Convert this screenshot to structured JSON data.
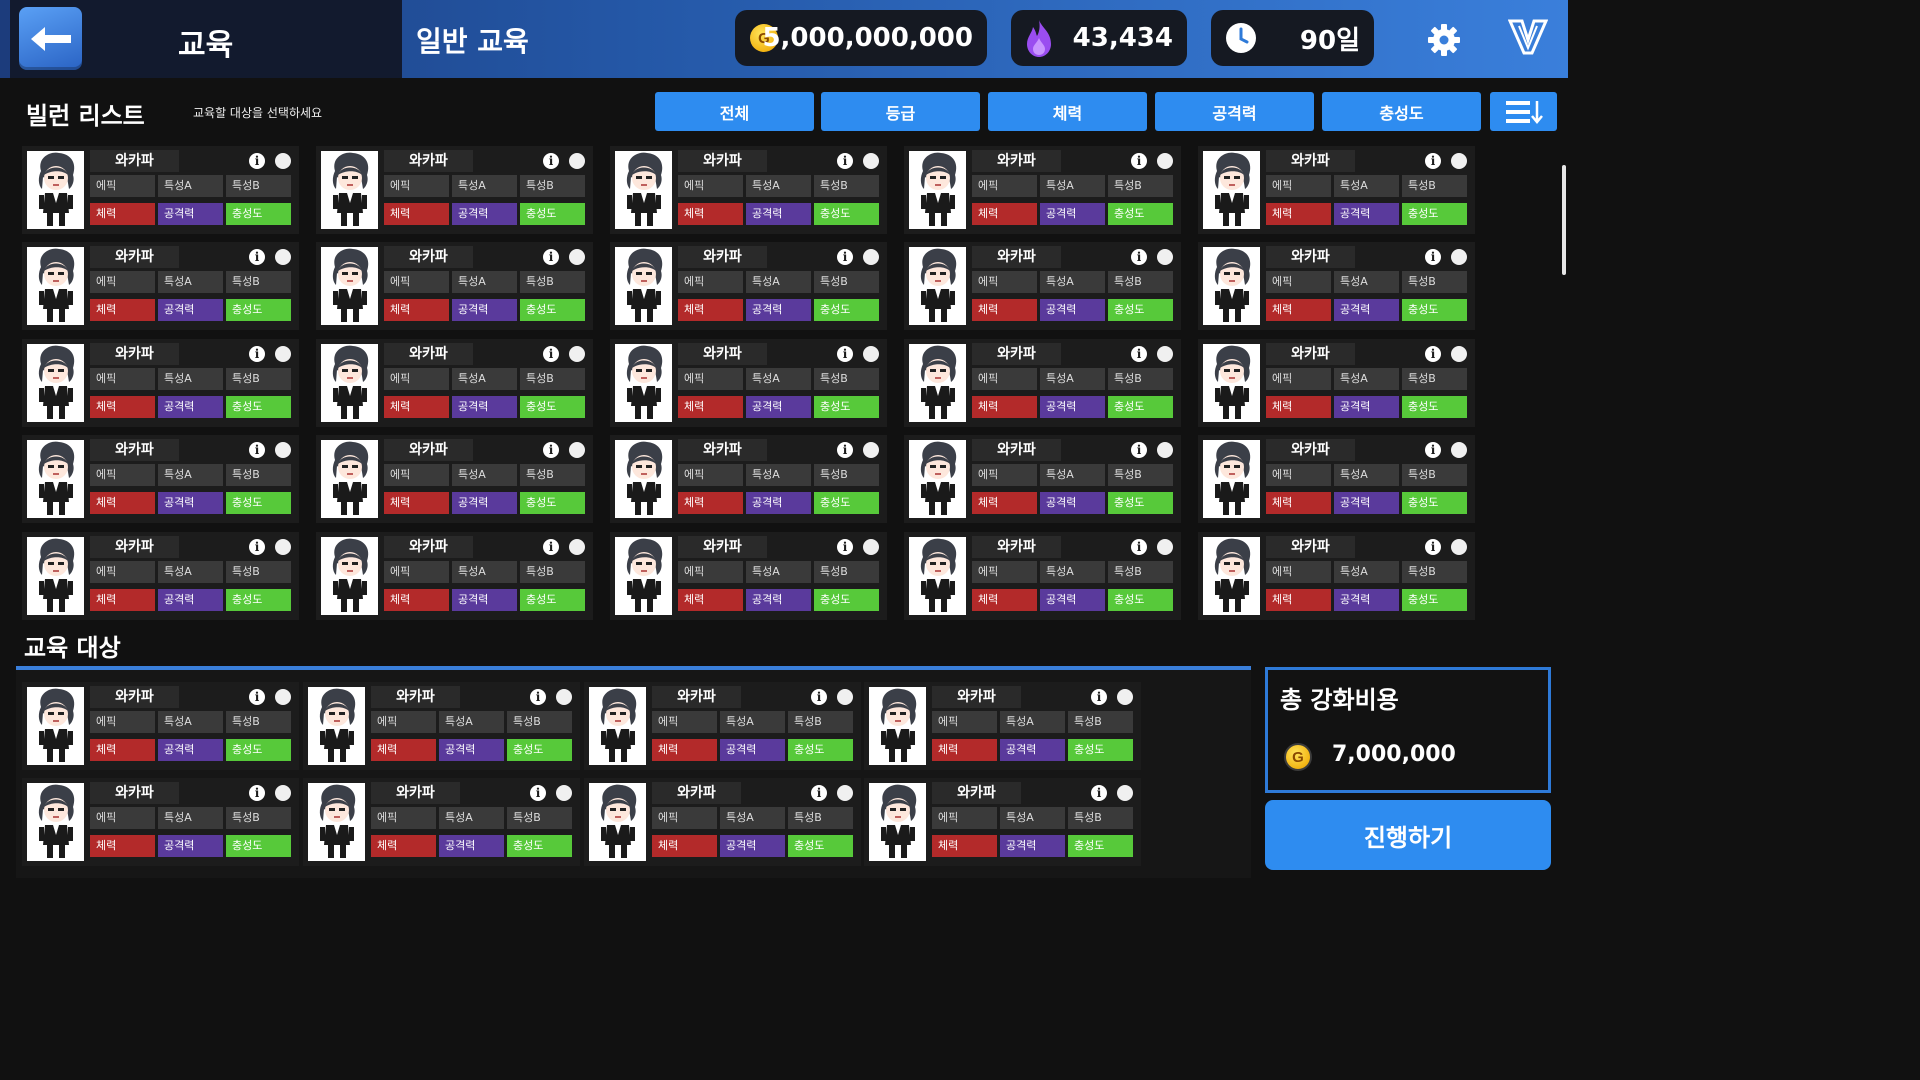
{
  "header": {
    "back_icon": "back-arrow-icon",
    "title": "교육",
    "subtitle": "일반 교육",
    "gold": "5,000,000,000",
    "gold_coin_letter": "G",
    "flame": "43,434",
    "days": "90일",
    "settings_icon": "gear-icon",
    "logo_icon": "v-logo-icon"
  },
  "list": {
    "title": "빌런 리스트",
    "hint": "교육할 대상을 선택하세요",
    "filters": [
      "전체",
      "등급",
      "체력",
      "공격력",
      "충성도"
    ],
    "sort_icon": "sort-icon"
  },
  "card_template": {
    "name": "와카파",
    "grade": "에픽",
    "trait_a": "특성A",
    "trait_b": "특성B",
    "hp": "체력",
    "attack": "공격력",
    "loyalty": "충성도",
    "info": "i"
  },
  "villain_count": 25,
  "training": {
    "title": "교육 대상",
    "count": 8
  },
  "cost": {
    "title": "총 강화비용",
    "coin_letter": "G",
    "value": "7,000,000"
  },
  "proceed_label": "진행하기",
  "colors": {
    "accent": "#2e8cf0",
    "hp": "#b32a2a",
    "attack": "#5a3a9c",
    "loyalty": "#57c93a"
  }
}
